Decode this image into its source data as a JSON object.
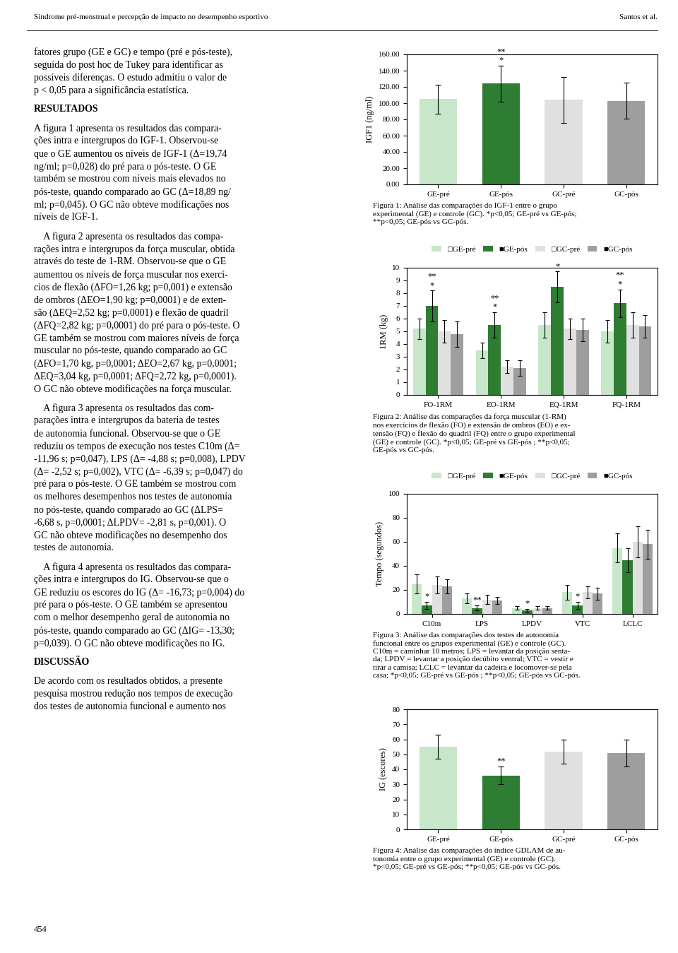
{
  "chart_data": [
    {
      "type": "bar",
      "title": "Figura 1: Análise das comparações do IGF-1 entre o grupo\nexperimental (GE) e controle (GC). *p<0,05; GE-pré vs GE-pós;\n**p<0,05; GE-pós vs GC-pós.",
      "ylabel": "IGF1 (ng/ml)",
      "categories": [
        "GE-pré",
        "GE-pós",
        "GC-pré",
        "GC-pós"
      ],
      "values": [
        105,
        124,
        104,
        103
      ],
      "errors": [
        18,
        22,
        28,
        22
      ],
      "colors": [
        "#c8e6c9",
        "#2e7d32",
        "#e0e0e0",
        "#9e9e9e"
      ],
      "ylim": [
        0,
        160
      ],
      "yticks": [
        {
          "value": 0,
          "label": "0.00"
        },
        {
          "value": 20,
          "label": "20.00"
        },
        {
          "value": 40,
          "label": "40.00"
        },
        {
          "value": 60,
          "label": "60.00"
        },
        {
          "value": 80,
          "label": "80.00"
        },
        {
          "value": 100,
          "label": "100.00"
        },
        {
          "value": 120,
          "label": "120.00"
        },
        {
          "value": 140,
          "label": "140.00"
        },
        {
          "value": 160,
          "label": "160.00"
        }
      ],
      "annotations": [
        {
          "text": "*",
          "category": "GE-pós"
        },
        {
          "text": "**",
          "category": "GE-pós"
        }
      ]
    },
    {
      "type": "bar",
      "title": "Figura 2: Análise das comparações da força muscular (1-RM)\nnos exercícios de flexão (FO) e extensão de ombros (EO) e ex-\ntensão (FQ) e flexão do quadril (FQ) entre o grupo experimental\n(GE) e controle (GC). *p<0,05; GE-pré vs GE-pós ; **p<0,05;\nGE-pós vs GC-pós.",
      "ylabel": "1RM (kg)",
      "categories": [
        "FO-1RM",
        "EO-1RM",
        "EQ-1RM",
        "FQ-1RM"
      ],
      "series": [
        {
          "name": "□GE-pré",
          "color": "#c8e6c9",
          "values": [
            5.2,
            3.5,
            5.5,
            5.0
          ],
          "errors": [
            0.8,
            0.6,
            1.0,
            0.9
          ]
        },
        {
          "name": "■GE-pós",
          "color": "#2e7d32",
          "values": [
            7.0,
            5.5,
            8.5,
            7.2
          ],
          "errors": [
            1.2,
            1.0,
            1.2,
            1.1
          ]
        },
        {
          "name": "□GC-pré",
          "color": "#e0e0e0",
          "values": [
            5.0,
            2.2,
            5.2,
            5.5
          ],
          "errors": [
            0.9,
            0.5,
            0.8,
            1.0
          ]
        },
        {
          "name": "■GC-pós",
          "color": "#9e9e9e",
          "values": [
            4.8,
            2.1,
            5.1,
            5.4
          ],
          "errors": [
            1.0,
            0.6,
            0.9,
            0.9
          ]
        }
      ],
      "ylim": [
        0,
        10
      ],
      "yticks": [
        0,
        1,
        2,
        3,
        4,
        5,
        6,
        7,
        8,
        9,
        10
      ],
      "legend": "lower center",
      "annotations": [
        {
          "text": "*",
          "category": "FO-1RM",
          "series": "■GE-pós"
        },
        {
          "text": "**",
          "category": "FO-1RM",
          "series": "■GE-pós"
        },
        {
          "text": "*",
          "category": "EO-1RM",
          "series": "■GE-pós"
        },
        {
          "text": "**",
          "category": "EO-1RM",
          "series": "■GE-pós"
        },
        {
          "text": "*",
          "category": "EQ-1RM",
          "series": "■GE-pós"
        },
        {
          "text": "*",
          "category": "FQ-1RM",
          "series": "■GE-pós"
        },
        {
          "text": "**",
          "category": "FQ-1RM",
          "series": "■GE-pós"
        }
      ]
    },
    {
      "type": "bar",
      "title": "Figura 3: Análise das comparações dos testes de autonomia\nfuncional entre os grupos experimental (GE) e controle (GC).\nC10m = caminhar 10 metros; LPS = levantar da posição senta-\nda; LPDV = levantar a posição decúbito ventral; VTC = vestir e\ntirar a camisa; LCLC = levantar da cadeira e locomover-se pela\ncasa; *p<0,05; GE-pré vs GE-pós ; **p<0,05; GE-pós vs GC-pós.",
      "ylabel": "Tempo (segundos)",
      "categories": [
        "C10m",
        "LPS",
        "LPDV",
        "VTC",
        "LCLC"
      ],
      "series": [
        {
          "name": "□GE-pré",
          "color": "#c8e6c9",
          "values": [
            25,
            13,
            5,
            18,
            55
          ],
          "errors": [
            8,
            4,
            1.5,
            6,
            12
          ]
        },
        {
          "name": "■GE-pós",
          "color": "#2e7d32",
          "values": [
            7,
            5,
            3,
            7,
            45
          ],
          "errors": [
            3,
            2,
            1.0,
            3,
            10
          ]
        },
        {
          "name": "□GC-pré",
          "color": "#e0e0e0",
          "values": [
            24,
            12,
            5,
            18,
            60
          ],
          "errors": [
            7,
            4,
            1.5,
            5,
            13
          ]
        },
        {
          "name": "■GC-pós",
          "color": "#9e9e9e",
          "values": [
            23,
            11,
            5,
            17,
            58
          ],
          "errors": [
            6,
            3,
            1.5,
            5,
            12
          ]
        }
      ],
      "ylim": [
        0,
        100
      ],
      "yticks": [
        0,
        20,
        40,
        60,
        80,
        100
      ],
      "legend": "lower center",
      "annotations": [
        {
          "text": "*",
          "category": "C10m",
          "series": "■GE-pós"
        },
        {
          "text": "**",
          "category": "LPS",
          "series": "■GE-pós"
        },
        {
          "text": "*",
          "category": "LPDV",
          "series": "■GE-pós"
        },
        {
          "text": "*",
          "category": "VTC",
          "series": "■GE-pós"
        }
      ]
    },
    {
      "type": "bar",
      "title": "Figura 4: Análise das comparações do índice GDLAM de au-\ntonomia entre o grupo experimental (GE) e controle (GC).\n*p<0,05; GE-pré vs GE-pós; **p<0,05; GE-pós vs GC-pós.",
      "ylabel": "IG (escores)",
      "categories": [
        "GE-pré",
        "GE-pós",
        "GC-pré",
        "GC-pós"
      ],
      "values": [
        55,
        36,
        52,
        51
      ],
      "errors": [
        8,
        6,
        8,
        9
      ],
      "colors": [
        "#c8e6c9",
        "#2e7d32",
        "#e0e0e0",
        "#9e9e9e"
      ],
      "ylim": [
        0,
        80
      ],
      "yticks": [
        0,
        10,
        20,
        30,
        40,
        50,
        60,
        70,
        80
      ],
      "annotations": [
        {
          "text": "**",
          "category": "GE-pós"
        }
      ]
    }
  ],
  "annotations": {
    "header": [
      "Síndrome pré-menstrual e percepção de impacto no desempenho esportivo",
      "Santos et al."
    ],
    "footer": "454",
    "body": [
      [
        "fatores grupo (GE e GC) e tempo (pré e pós-teste),",
        "seguida do post hoc de Tukey para identificar as",
        "possíveis diferenças. O estudo admitiu o valor de",
        "p < 0,05 para a significância estatística."
      ],
      [
        "RESULTADOS"
      ],
      [
        "A figura 1 apresenta os resultados das compara-",
        "ções intra e intergrupos do IGF-1. Observou-se",
        "que o GE aumentou os níveis de IGF-1 (Δ=19,74",
        "ng/ml; p=0,028) do pré para o pós-teste. O GE",
        "também se mostrou com níveis mais elevados no",
        "pós-teste, quando comparado ao GC (Δ=18,89 ng/",
        "ml; p=0,045). O GC não obteve modificações nos",
        "níveis de IGF-1."
      ],
      [
        "    A figura 2 apresenta os resultados das compa-",
        "rações intra e intergrupos da força muscular, obtida",
        "através do teste de 1-RM. Observou-se que o GE",
        "aumentou os níveis de força muscular nos exercí-",
        "cios de flexão (ΔFO=1,26 kg; p=0,001) e extensão",
        "de ombros (ΔEO=1,90 kg; p=0,0001) e de exten-",
        "são (ΔEQ=2,52 kg; p=0,0001) e flexão de quadril",
        "(ΔFQ=2,82 kg; p=0,0001) do pré para o pós-teste. O",
        "GE também se mostrou com maiores níveis de força",
        "muscular no pós-teste, quando comparado ao GC",
        "(ΔFO=1,70 kg, p=0,0001; ΔEO=2,67 kg, p=0,0001;",
        "ΔEQ=3,04 kg, p=0,0001; ΔFQ=2,72 kg, p=0,0001).",
        "O GC não obteve modificações na força muscular."
      ],
      [
        "    A figura 3 apresenta os resultados das com-",
        "parações intra e intergrupos da bateria de testes",
        "de autonomia funcional. Observou-se que o GE",
        "reduziu os tempos de execução nos testes C10m (Δ=",
        "-11,96 s; p=0,047), LPS (Δ= -4,88 s; p=0,008), LPDV",
        "(Δ= -2,52 s; p=0,002), VTC (Δ= -6,39 s; p=0,047) do",
        "pré para o pós-teste. O GE também se mostrou com",
        "os melhores desempenhos nos testes de autonomia",
        "no pós-teste, quando comparado ao GC (ΔLPS=",
        "-6,68 s, p=0,0001; ΔLPDV= -2,81 s, p=0,001). O",
        "GC não obteve modificações no desempenho dos",
        "testes de autonomia."
      ],
      [
        "    A figura 4 apresenta os resultados das compara-",
        "ções intra e intergrupos do IG. Observou-se que o",
        "GE reduziu os escores do IG (Δ= -16,73; p=0,004) do",
        "pré para o pós-teste. O GE também se apresentou",
        "com o melhor desempenho geral de autonomia no",
        "pós-teste, quando comparado ao GC (ΔIG= -13,30;",
        "p=0,039). O GC não obteve modificações no IG."
      ],
      [
        "DISCUSSÃO"
      ],
      [
        "De acordo com os resultados obtidos, a presente",
        "pesquisa mostrou redução nos tempos de execução",
        "dos testes de autonomia funcional e aumento nos"
      ]
    ]
  }
}
